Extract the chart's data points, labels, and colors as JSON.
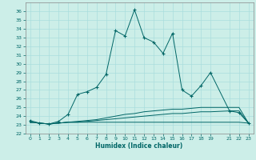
{
  "xlabel": "Humidex (Indice chaleur)",
  "bg_color": "#cceee8",
  "grid_color": "#aadddd",
  "line_color": "#006666",
  "spine_color": "#888888",
  "xlim": [
    -0.5,
    23.5
  ],
  "ylim": [
    22,
    37
  ],
  "xticks": [
    0,
    1,
    2,
    3,
    4,
    5,
    6,
    7,
    8,
    9,
    10,
    11,
    12,
    13,
    14,
    15,
    16,
    17,
    18,
    19,
    21,
    22,
    23
  ],
  "yticks": [
    22,
    23,
    24,
    25,
    26,
    27,
    28,
    29,
    30,
    31,
    32,
    33,
    34,
    35,
    36
  ],
  "lines": [
    {
      "x": [
        0,
        1,
        2,
        3,
        4,
        5,
        6,
        7,
        8,
        9,
        10,
        11,
        12,
        13,
        14,
        15,
        16,
        17,
        18,
        19,
        21,
        22,
        23
      ],
      "y": [
        23.5,
        23.2,
        23.1,
        23.4,
        24.2,
        26.5,
        26.8,
        27.3,
        28.8,
        33.8,
        33.2,
        36.2,
        33.0,
        32.5,
        31.2,
        33.5,
        27.0,
        26.3,
        27.5,
        29.0,
        24.6,
        24.4,
        23.2
      ],
      "marker": "+"
    },
    {
      "x": [
        0,
        1,
        2,
        3,
        4,
        5,
        6,
        7,
        8,
        9,
        10,
        11,
        12,
        13,
        14,
        15,
        16,
        17,
        18,
        19,
        21,
        22,
        23
      ],
      "y": [
        23.3,
        23.2,
        23.1,
        23.2,
        23.3,
        23.4,
        23.5,
        23.6,
        23.8,
        24.0,
        24.2,
        24.3,
        24.5,
        24.6,
        24.7,
        24.8,
        24.8,
        24.9,
        25.0,
        25.0,
        25.0,
        25.0,
        23.2
      ],
      "marker": null
    },
    {
      "x": [
        0,
        1,
        2,
        3,
        4,
        5,
        6,
        7,
        8,
        9,
        10,
        11,
        12,
        13,
        14,
        15,
        16,
        17,
        18,
        19,
        21,
        22,
        23
      ],
      "y": [
        23.3,
        23.2,
        23.1,
        23.2,
        23.3,
        23.3,
        23.4,
        23.5,
        23.6,
        23.7,
        23.8,
        23.9,
        24.0,
        24.1,
        24.2,
        24.3,
        24.3,
        24.4,
        24.5,
        24.5,
        24.6,
        24.6,
        23.2
      ],
      "marker": null
    },
    {
      "x": [
        0,
        1,
        2,
        3,
        4,
        5,
        6,
        7,
        8,
        9,
        10,
        11,
        12,
        13,
        14,
        15,
        16,
        17,
        18,
        19,
        21,
        22,
        23
      ],
      "y": [
        23.3,
        23.2,
        23.1,
        23.2,
        23.3,
        23.3,
        23.3,
        23.3,
        23.3,
        23.3,
        23.3,
        23.3,
        23.3,
        23.3,
        23.3,
        23.3,
        23.3,
        23.3,
        23.3,
        23.3,
        23.3,
        23.3,
        23.2
      ],
      "marker": null
    }
  ]
}
